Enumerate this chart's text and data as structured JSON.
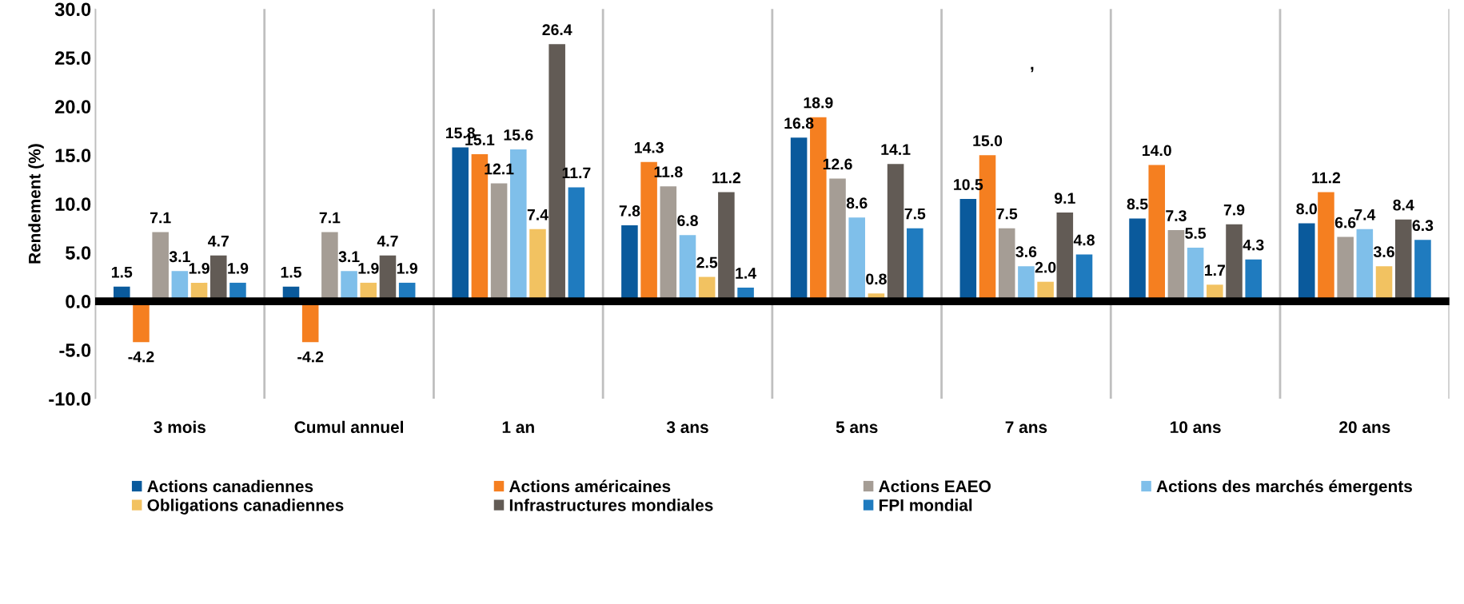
{
  "chart_data": {
    "type": "bar",
    "ylabel": "Rendement (%)",
    "categories": [
      "3 mois",
      "Cumul annuel",
      "1 an",
      "3 ans",
      "5 ans",
      "7 ans",
      "10 ans",
      "20 ans"
    ],
    "series": [
      {
        "name": "Actions canadiennes",
        "color": "#0a5a9c",
        "values": [
          1.5,
          1.5,
          15.8,
          7.8,
          16.8,
          10.5,
          8.5,
          8.0
        ],
        "value_labels": [
          "1.5",
          "1.5",
          "15.8",
          "7.8",
          "16.8",
          "10.5",
          "8.5",
          "8.0"
        ]
      },
      {
        "name": "Actions américaines",
        "color": "#f57f20",
        "values": [
          -4.2,
          -4.2,
          15.1,
          14.3,
          18.9,
          15.0,
          14.0,
          11.2
        ],
        "value_labels": [
          "-4.2",
          "-4.2",
          "15.1",
          "14.3",
          "18.9",
          "15.0",
          "14.0",
          "11.2"
        ]
      },
      {
        "name": "Actions EAEO",
        "color": "#a59d95",
        "values": [
          7.1,
          7.1,
          12.1,
          11.8,
          12.6,
          7.5,
          7.3,
          6.6
        ],
        "value_labels": [
          "7.1",
          "7.1",
          "12.1",
          "11.8",
          "12.6",
          "7.5",
          "7.3",
          "6.6"
        ]
      },
      {
        "name": "Actions des marchés émergents",
        "color": "#7fbfea",
        "values": [
          3.1,
          3.1,
          15.6,
          6.8,
          8.6,
          3.6,
          5.5,
          7.4
        ],
        "value_labels": [
          "3.1",
          "3.1",
          "15.6",
          "6.8",
          "8.6",
          "3.6",
          "5.5",
          "7.4"
        ]
      },
      {
        "name": "Obligations canadiennes",
        "color": "#f2c261",
        "values": [
          1.9,
          1.9,
          7.4,
          2.5,
          0.8,
          2.0,
          1.7,
          3.6
        ],
        "value_labels": [
          "1.9",
          "1.9",
          "7.4",
          "2.5",
          "0.8",
          "2.0",
          "1.7",
          "3.6"
        ]
      },
      {
        "name": "Infrastructures mondiales",
        "color": "#625b55",
        "values": [
          4.7,
          4.7,
          26.4,
          11.2,
          14.1,
          9.1,
          7.9,
          8.4
        ],
        "value_labels": [
          "4.7",
          "4.7",
          "26.4",
          "11.2",
          "14.1",
          "9.1",
          "7.9",
          "8.4"
        ]
      },
      {
        "name": "FPI mondial",
        "color": "#1f7bbf",
        "values": [
          1.9,
          1.9,
          11.7,
          1.4,
          7.5,
          4.8,
          4.3,
          6.3
        ],
        "value_labels": [
          "1.9",
          "1.9",
          "11.7",
          "1.4",
          "7.5",
          "4.8",
          "4.3",
          "6.3"
        ]
      }
    ],
    "ylim": [
      -10,
      30
    ],
    "yticks": [
      {
        "value": -10,
        "label": "-10.0"
      },
      {
        "value": -5,
        "label": "-5.0"
      },
      {
        "value": 0,
        "label": "0.0"
      },
      {
        "value": 5,
        "label": "5.0"
      },
      {
        "value": 10,
        "label": "10.0"
      },
      {
        "value": 15,
        "label": "15.0"
      },
      {
        "value": 20,
        "label": "20.0"
      },
      {
        "value": 25,
        "label": "25.0"
      },
      {
        "value": 30,
        "label": "30.0"
      }
    ],
    "grid": "x",
    "legend": "bottom",
    "annotations": [
      ","
    ]
  }
}
